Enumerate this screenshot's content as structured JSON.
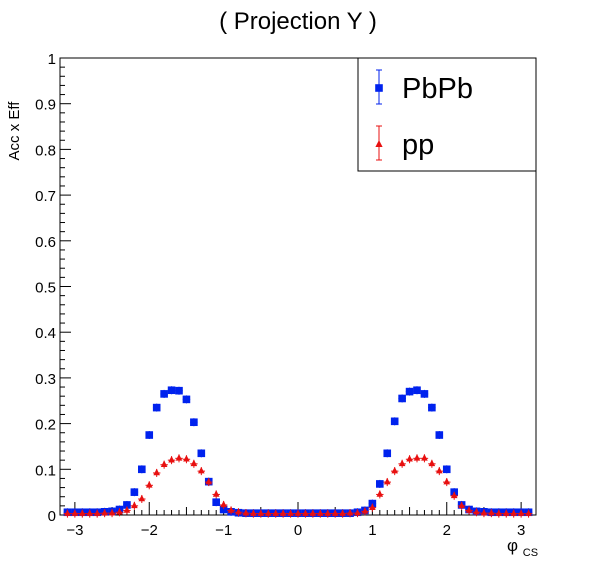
{
  "chart_data": {
    "type": "scatter",
    "title": "( Projection Y )",
    "xlabel": "φ",
    "xlabel_sub": "CS",
    "ylabel": "Acc x Eff",
    "xlim": [
      -3.2,
      3.2
    ],
    "ylim": [
      0,
      1
    ],
    "x_ticks": [
      -3,
      -2,
      -1,
      0,
      1,
      2,
      3
    ],
    "y_ticks": [
      0,
      0.1,
      0.2,
      0.3,
      0.4,
      0.5,
      0.6,
      0.7,
      0.8,
      0.9,
      1
    ],
    "x_tick_labels": [
      "−3",
      "−2",
      "−1",
      "0",
      "1",
      "2",
      "3"
    ],
    "y_tick_labels": [
      "0",
      "0.1",
      "0.2",
      "0.3",
      "0.4",
      "0.5",
      "0.6",
      "0.7",
      "0.8",
      "0.9",
      "1"
    ],
    "grid": false,
    "legend_position": "top-right",
    "x": [
      -3.1,
      -3.0,
      -2.9,
      -2.8,
      -2.7,
      -2.6,
      -2.5,
      -2.4,
      -2.3,
      -2.2,
      -2.1,
      -2.0,
      -1.9,
      -1.8,
      -1.7,
      -1.6,
      -1.5,
      -1.4,
      -1.3,
      -1.2,
      -1.1,
      -1.0,
      -0.9,
      -0.8,
      -0.7,
      -0.6,
      -0.5,
      -0.4,
      -0.3,
      -0.2,
      -0.1,
      0.0,
      0.1,
      0.2,
      0.3,
      0.4,
      0.5,
      0.6,
      0.7,
      0.8,
      0.9,
      1.0,
      1.1,
      1.2,
      1.3,
      1.4,
      1.5,
      1.6,
      1.7,
      1.8,
      1.9,
      2.0,
      2.1,
      2.2,
      2.3,
      2.4,
      2.5,
      2.6,
      2.7,
      2.8,
      2.9,
      3.0,
      3.1
    ],
    "series": [
      {
        "name": "PbPb",
        "color": "#0022ee",
        "marker": "square",
        "values": [
          0.006,
          0.006,
          0.006,
          0.006,
          0.006,
          0.007,
          0.008,
          0.012,
          0.022,
          0.05,
          0.1,
          0.175,
          0.235,
          0.265,
          0.273,
          0.272,
          0.253,
          0.203,
          0.135,
          0.073,
          0.028,
          0.012,
          0.007,
          0.005,
          0.004,
          0.004,
          0.004,
          0.004,
          0.004,
          0.004,
          0.004,
          0.004,
          0.004,
          0.004,
          0.004,
          0.004,
          0.004,
          0.004,
          0.004,
          0.006,
          0.01,
          0.025,
          0.068,
          0.135,
          0.205,
          0.255,
          0.27,
          0.273,
          0.265,
          0.235,
          0.175,
          0.1,
          0.05,
          0.022,
          0.012,
          0.008,
          0.007,
          0.006,
          0.006,
          0.006,
          0.006,
          0.006,
          0.006
        ]
      },
      {
        "name": "pp",
        "color": "#e81010",
        "marker": "triangle",
        "values": [
          0.003,
          0.003,
          0.003,
          0.003,
          0.003,
          0.004,
          0.004,
          0.006,
          0.01,
          0.02,
          0.035,
          0.065,
          0.092,
          0.11,
          0.12,
          0.124,
          0.122,
          0.112,
          0.096,
          0.072,
          0.045,
          0.022,
          0.01,
          0.006,
          0.004,
          0.003,
          0.003,
          0.003,
          0.003,
          0.003,
          0.003,
          0.003,
          0.003,
          0.003,
          0.003,
          0.003,
          0.003,
          0.003,
          0.004,
          0.004,
          0.008,
          0.016,
          0.045,
          0.072,
          0.096,
          0.112,
          0.122,
          0.124,
          0.124,
          0.112,
          0.096,
          0.072,
          0.042,
          0.02,
          0.01,
          0.006,
          0.004,
          0.004,
          0.003,
          0.003,
          0.003,
          0.003,
          0.003
        ]
      }
    ]
  }
}
